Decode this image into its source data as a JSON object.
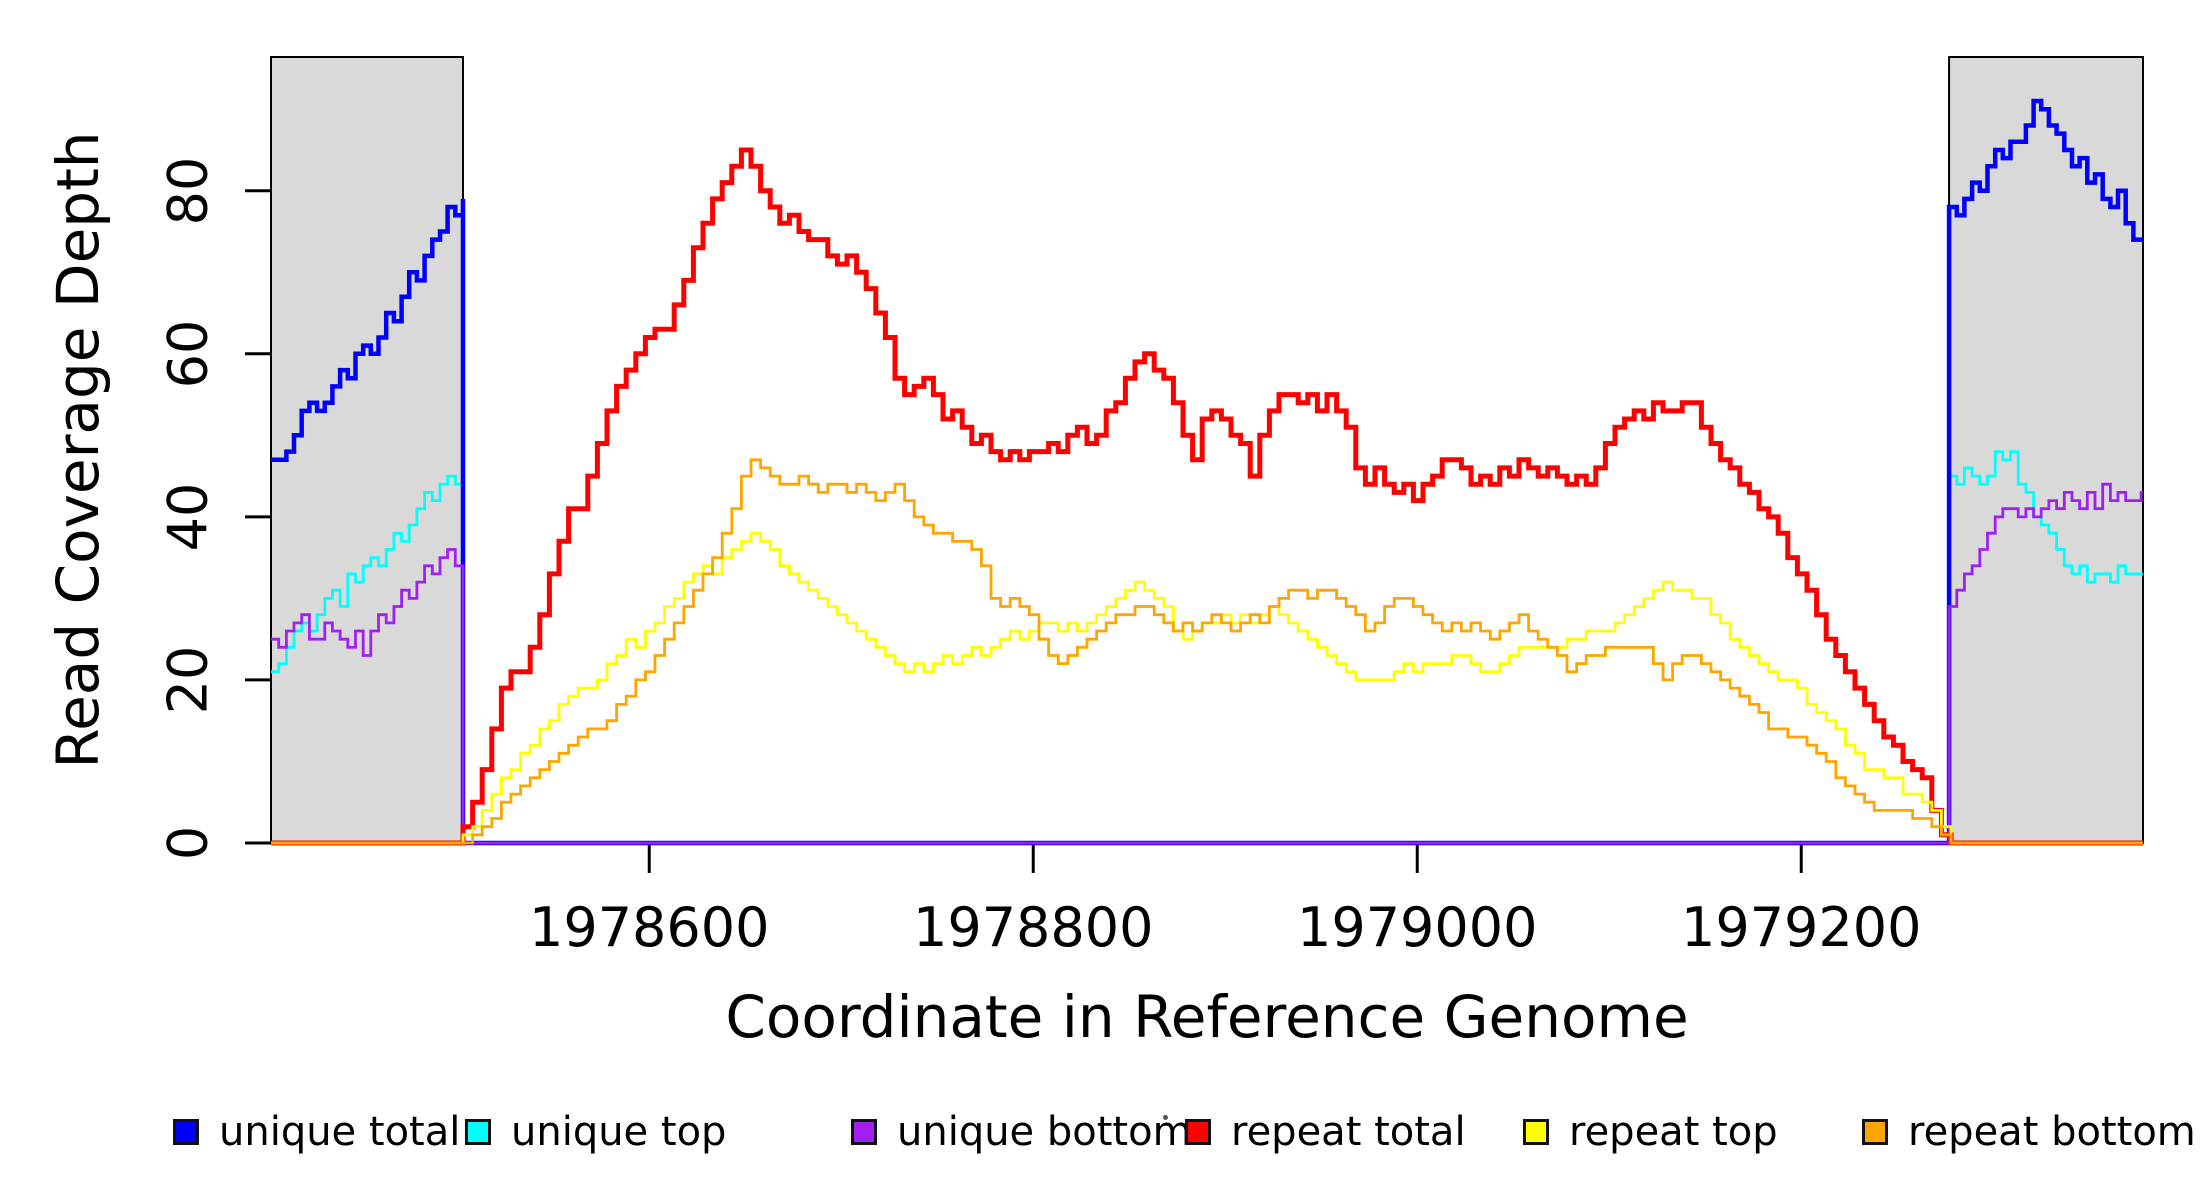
{
  "chart_data": {
    "type": "line",
    "title": "",
    "xlabel": "Coordinate in Reference Genome",
    "ylabel": "Read Coverage Depth",
    "grid": false,
    "legend_position": "bottom-horizontal",
    "x_axis": {
      "min": 1978403,
      "max": 1979378,
      "ticks": [
        {
          "value": 1978600,
          "label": "1978600"
        },
        {
          "value": 1978800,
          "label": "1978800"
        },
        {
          "value": 1979000,
          "label": "1979000"
        },
        {
          "value": 1979200,
          "label": "1979200"
        }
      ]
    },
    "y_axis": {
      "min": 0,
      "max": 96.4,
      "ticks": [
        {
          "value": 0,
          "label": "0"
        },
        {
          "value": 20,
          "label": "20"
        },
        {
          "value": 40,
          "label": "40"
        },
        {
          "value": 60,
          "label": "60"
        },
        {
          "value": 80,
          "label": "80"
        }
      ]
    },
    "shaded_regions": [
      {
        "x0": 1978403,
        "x1": 1978503,
        "color": "#d9d9d9",
        "border": "#000000"
      },
      {
        "x0": 1979277,
        "x1": 1979378,
        "color": "#d9d9d9",
        "border": "#000000"
      }
    ],
    "series": [
      {
        "name": "unique top",
        "color": "#00ffff",
        "line_width": 2.8,
        "chunks": [
          {
            "start": 1978403,
            "step": 4,
            "values": [
              21,
              22,
              24,
              26,
              27,
              26,
              28,
              30,
              31,
              29,
              33,
              32,
              34,
              35,
              34,
              36,
              38,
              37,
              39,
              41,
              43,
              42,
              44,
              45,
              44,
              45
            ]
          },
          {
            "start": 1978503,
            "step": 774,
            "values": [
              0,
              0
            ]
          },
          {
            "start": 1979277,
            "step": 4,
            "values": [
              45,
              44,
              46,
              45,
              44,
              45,
              48,
              47,
              48,
              44,
              43,
              40,
              39,
              38,
              36,
              34,
              33,
              34,
              32,
              33,
              33,
              32,
              34,
              33,
              33,
              33
            ]
          }
        ]
      },
      {
        "name": "unique total",
        "color": "#0000ff",
        "line_width": 4.5,
        "chunks": [
          {
            "start": 1978403,
            "step": 4,
            "values": [
              47,
              47,
              48,
              50,
              53,
              54,
              53,
              54,
              56,
              58,
              57,
              60,
              61,
              60,
              62,
              65,
              64,
              67,
              70,
              69,
              72,
              74,
              75,
              78,
              77,
              79
            ]
          },
          {
            "start": 1978503,
            "step": 774,
            "values": [
              0,
              0
            ]
          },
          {
            "start": 1979277,
            "step": 4,
            "values": [
              78,
              77,
              79,
              81,
              80,
              83,
              85,
              84,
              86,
              86,
              88,
              91,
              90,
              88,
              87,
              85,
              83,
              84,
              81,
              82,
              79,
              78,
              80,
              76,
              74,
              74
            ]
          }
        ]
      },
      {
        "name": "unique bottom",
        "color": "#a020f0",
        "line_width": 2.8,
        "chunks": [
          {
            "start": 1978403,
            "step": 4,
            "values": [
              25,
              24,
              26,
              27,
              28,
              25,
              25,
              27,
              26,
              25,
              24,
              26,
              23,
              26,
              28,
              27,
              29,
              31,
              30,
              32,
              34,
              33,
              35,
              36,
              34,
              33
            ]
          },
          {
            "start": 1978503,
            "step": 774,
            "values": [
              0,
              0
            ]
          },
          {
            "start": 1979277,
            "step": 4,
            "values": [
              29,
              31,
              33,
              34,
              36,
              38,
              40,
              41,
              41,
              40,
              41,
              40,
              41,
              42,
              41,
              43,
              42,
              41,
              43,
              41,
              44,
              42,
              43,
              42,
              42,
              43
            ]
          }
        ]
      },
      {
        "name": "repeat total",
        "color": "#ff0000",
        "line_width": 5,
        "chunks": [
          {
            "start": 1978403,
            "step": 100,
            "values": [
              0
            ]
          },
          {
            "start": 1978503,
            "step": 5,
            "values": [
              2,
              5,
              9,
              14,
              19,
              21,
              21,
              24,
              28,
              33,
              37,
              41,
              41,
              45,
              49,
              53,
              56,
              58,
              60,
              62,
              63,
              63,
              66,
              69,
              73,
              76,
              79,
              81,
              83,
              85,
              83,
              80,
              78,
              76,
              77,
              75,
              74,
              74,
              72,
              71,
              72,
              70,
              68,
              65,
              62,
              57,
              55,
              56,
              57,
              55,
              52,
              53,
              51,
              49,
              50,
              48,
              47,
              48,
              47,
              48,
              48,
              49,
              48,
              50,
              51,
              49,
              50,
              53,
              54,
              57,
              59,
              60,
              58,
              57,
              54,
              50,
              47,
              52,
              53,
              52,
              50,
              49,
              45,
              50,
              53,
              55,
              55,
              54,
              55,
              53,
              55,
              53,
              51,
              46,
              44,
              46,
              44,
              43,
              44,
              42,
              44,
              45,
              47,
              47,
              46,
              44,
              45,
              44,
              46,
              45,
              47,
              46,
              45,
              46,
              45,
              44,
              45,
              44,
              46,
              49,
              51,
              52,
              53,
              52,
              54,
              53,
              53,
              54,
              54,
              51,
              49,
              47,
              46,
              44,
              43,
              41,
              40,
              38,
              35,
              33,
              31,
              28,
              25,
              23,
              21,
              19,
              17,
              15,
              13,
              12,
              10,
              9,
              8,
              4,
              1,
              0
            ]
          }
        ]
      },
      {
        "name": "repeat top",
        "color": "#ffff00",
        "line_width": 2.8,
        "chunks": [
          {
            "start": 1978403,
            "step": 100,
            "values": [
              0
            ]
          },
          {
            "start": 1978503,
            "step": 5,
            "values": [
              1,
              2,
              4,
              6,
              8,
              9,
              11,
              12,
              14,
              15,
              17,
              18,
              19,
              19,
              20,
              22,
              23,
              25,
              24,
              26,
              27,
              29,
              30,
              32,
              33,
              34,
              33,
              35,
              36,
              37,
              38,
              37,
              36,
              34,
              33,
              32,
              31,
              30,
              29,
              28,
              27,
              26,
              25,
              24,
              23,
              22,
              21,
              22,
              21,
              22,
              23,
              22,
              23,
              24,
              23,
              24,
              25,
              26,
              25,
              26,
              27,
              27,
              26,
              27,
              26,
              27,
              28,
              29,
              30,
              31,
              32,
              31,
              30,
              29,
              26,
              25,
              26,
              27,
              27,
              28,
              27,
              28,
              27,
              28,
              29,
              28,
              27,
              26,
              25,
              24,
              23,
              22,
              21,
              20,
              20,
              20,
              20,
              21,
              22,
              21,
              22,
              22,
              22,
              23,
              23,
              22,
              21,
              21,
              22,
              23,
              24,
              24,
              24,
              24,
              24,
              25,
              25,
              26,
              26,
              26,
              27,
              28,
              29,
              30,
              31,
              32,
              31,
              31,
              30,
              30,
              28,
              27,
              25,
              24,
              23,
              22,
              21,
              20,
              20,
              19,
              17,
              16,
              15,
              14,
              12,
              11,
              9,
              9,
              8,
              8,
              6,
              6,
              5,
              4,
              2,
              0
            ]
          }
        ]
      },
      {
        "name": "repeat bottom",
        "color": "#ffa500",
        "line_width": 2.8,
        "chunks": [
          {
            "start": 1978403,
            "step": 100,
            "values": [
              0
            ]
          },
          {
            "start": 1978503,
            "step": 5,
            "values": [
              0,
              1,
              2,
              3,
              5,
              6,
              7,
              8,
              9,
              10,
              11,
              12,
              13,
              14,
              14,
              15,
              17,
              18,
              20,
              21,
              23,
              25,
              27,
              29,
              31,
              33,
              35,
              38,
              41,
              45,
              47,
              46,
              45,
              44,
              44,
              45,
              44,
              43,
              44,
              44,
              43,
              44,
              43,
              42,
              43,
              44,
              42,
              40,
              39,
              38,
              38,
              37,
              37,
              36,
              34,
              30,
              29,
              30,
              29,
              28,
              25,
              23,
              22,
              23,
              24,
              25,
              26,
              27,
              28,
              28,
              29,
              29,
              28,
              27,
              26,
              27,
              26,
              27,
              28,
              27,
              26,
              27,
              28,
              27,
              29,
              30,
              31,
              31,
              30,
              31,
              31,
              30,
              29,
              28,
              26,
              27,
              29,
              30,
              30,
              29,
              28,
              27,
              26,
              27,
              26,
              27,
              26,
              25,
              26,
              27,
              28,
              26,
              25,
              24,
              23,
              21,
              22,
              23,
              23,
              24,
              24,
              24,
              24,
              24,
              22,
              20,
              22,
              23,
              23,
              22,
              21,
              20,
              19,
              18,
              17,
              16,
              14,
              14,
              13,
              13,
              12,
              11,
              10,
              8,
              7,
              6,
              5,
              4,
              4,
              4,
              4,
              3,
              3,
              2,
              1,
              0
            ]
          }
        ]
      }
    ],
    "legend": {
      "items": [
        "unique total",
        "unique top",
        "unique bottom",
        "repeat total",
        "repeat top",
        "repeat bottom"
      ]
    }
  }
}
